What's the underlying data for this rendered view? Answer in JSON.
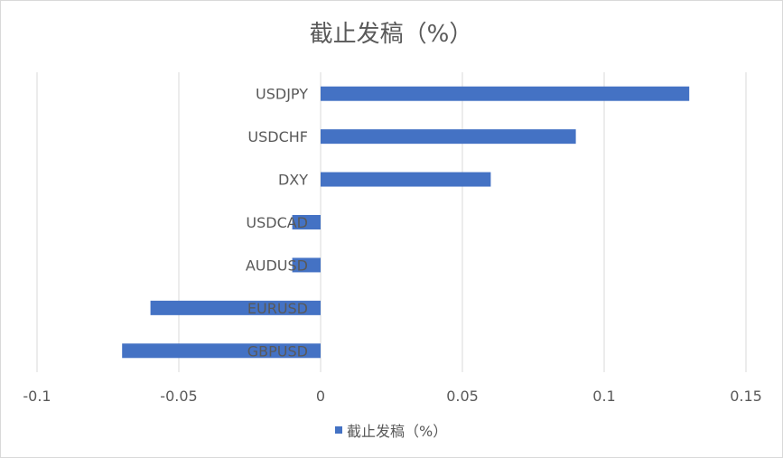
{
  "chart_data": {
    "type": "bar",
    "orientation": "horizontal",
    "title": "截止发稿（%）",
    "categories": [
      "USDJPY",
      "USDCHF",
      "DXY",
      "USDCAD",
      "AUDUSD",
      "EURUSD",
      "GBPUSD"
    ],
    "series": [
      {
        "name": "截止发稿（%）",
        "values": [
          0.13,
          0.09,
          0.06,
          -0.01,
          -0.01,
          -0.06,
          -0.07
        ],
        "color": "#4472C4"
      }
    ],
    "xlim": [
      -0.1,
      0.15
    ],
    "xticks": [
      "-0.1",
      "-0.05",
      "0",
      "0.05",
      "0.1",
      "0.15"
    ],
    "xtick_values": [
      -0.1,
      -0.05,
      0,
      0.05,
      0.1,
      0.15
    ],
    "grid": "vertical",
    "legend": "bottom",
    "gridline_color": "#d9d9d9"
  }
}
